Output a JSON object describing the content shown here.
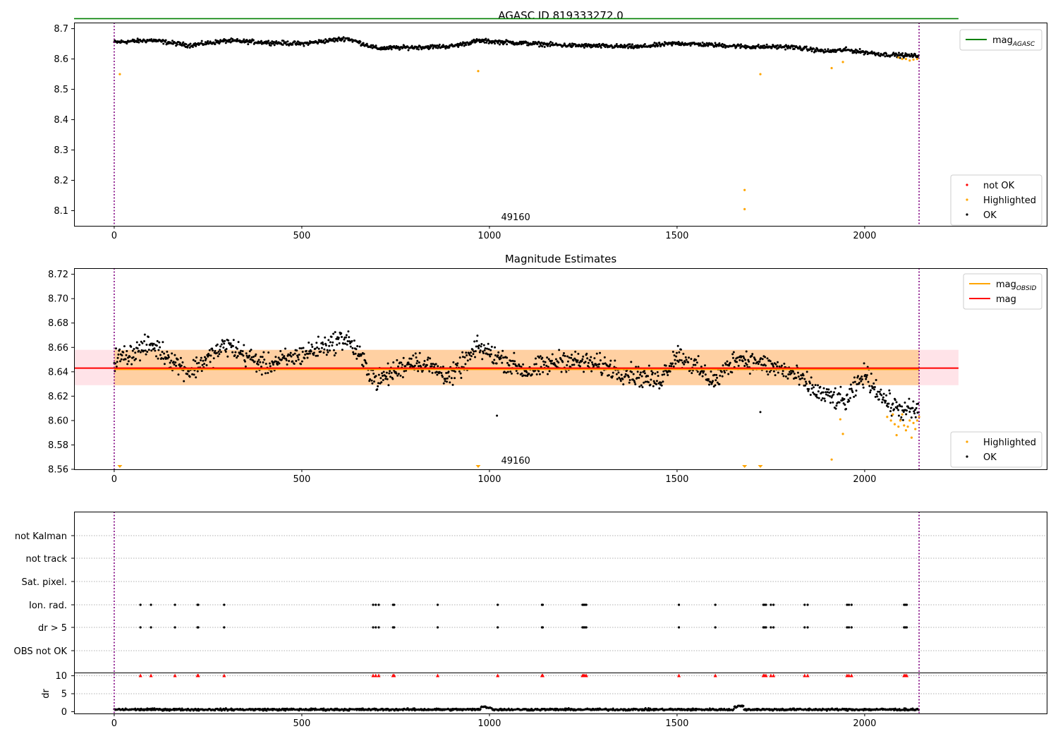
{
  "chart_data": [
    {
      "type": "scatter",
      "title": "AGASC ID 819333272.0",
      "xlim": [
        -107,
        2487
      ],
      "ylim": [
        8.05,
        8.72
      ],
      "xticks": [
        0,
        500,
        1000,
        1500,
        2000
      ],
      "yticks": [
        8.1,
        8.2,
        8.3,
        8.4,
        8.5,
        8.6,
        8.7
      ],
      "annotation": "49160",
      "annotation_x": 1070,
      "obs_boundaries": [
        0,
        2145
      ],
      "reference_line": {
        "label": "mag_AGASC",
        "y": 8.733,
        "x_range": [
          -107,
          2250
        ],
        "color": "#008000"
      },
      "series": [
        {
          "name": "OK",
          "color": "#000000",
          "trend": [
            [
              0,
              8.655
            ],
            [
              100,
              8.662
            ],
            [
              200,
              8.645
            ],
            [
              300,
              8.66
            ],
            [
              500,
              8.65
            ],
            [
              620,
              8.668
            ],
            [
              700,
              8.635
            ],
            [
              900,
              8.642
            ],
            [
              970,
              8.66
            ],
            [
              1200,
              8.645
            ],
            [
              1400,
              8.64
            ],
            [
              1500,
              8.652
            ],
            [
              1700,
              8.64
            ],
            [
              1800,
              8.64
            ],
            [
              1900,
              8.625
            ],
            [
              1950,
              8.63
            ],
            [
              2050,
              8.615
            ],
            [
              2140,
              8.61
            ]
          ],
          "jitter": 0.006
        },
        {
          "name": "Highlighted",
          "color": "#ffa500",
          "points": [
            [
              15,
              8.55
            ],
            [
              970,
              8.56
            ],
            [
              1680,
              8.168
            ],
            [
              1680,
              8.105
            ],
            [
              1722,
              8.55
            ],
            [
              1912,
              8.57
            ],
            [
              1942,
              8.59
            ],
            [
              2090,
              8.605
            ],
            [
              2100,
              8.6
            ],
            [
              2110,
              8.6
            ],
            [
              2120,
              8.595
            ],
            [
              2130,
              8.598
            ],
            [
              2140,
              8.6
            ]
          ]
        },
        {
          "name": "not OK",
          "color": "#ff0000",
          "points": []
        }
      ],
      "legends": [
        {
          "position": "top-right",
          "entries": [
            {
              "label": "mag",
              "sub": "AGASC",
              "kind": "line",
              "color": "#008000"
            }
          ]
        },
        {
          "position": "bottom-right",
          "entries": [
            {
              "label": "not OK",
              "kind": "dot",
              "color": "#ff0000"
            },
            {
              "label": "Highlighted",
              "kind": "dot",
              "color": "#ffa500"
            },
            {
              "label": "OK",
              "kind": "dot",
              "color": "#000000"
            }
          ]
        }
      ]
    },
    {
      "type": "scatter",
      "title": "Magnitude Estimates",
      "xlim": [
        -107,
        2487
      ],
      "ylim": [
        8.56,
        8.725
      ],
      "xticks": [
        0,
        500,
        1000,
        1500,
        2000
      ],
      "yticks": [
        8.56,
        8.58,
        8.6,
        8.62,
        8.64,
        8.66,
        8.68,
        8.7,
        8.72
      ],
      "annotation": "49160",
      "annotation_x": 1070,
      "obs_boundaries": [
        0,
        2145
      ],
      "bands": [
        {
          "color": "#ffc0cb",
          "opacity": 0.45,
          "y": [
            8.629,
            8.658
          ],
          "x_range": [
            -107,
            2250
          ]
        },
        {
          "color": "#ffa500",
          "opacity": 0.3,
          "y": [
            8.629,
            8.658
          ],
          "x_range": [
            0,
            2145
          ]
        }
      ],
      "lines": [
        {
          "label": "mag_OBSID",
          "y": 8.642,
          "x_range": [
            0,
            2145
          ],
          "color": "#ffa500"
        },
        {
          "label": "mag",
          "y": 8.643,
          "x_range": [
            -107,
            2250
          ],
          "color": "#ff0000"
        }
      ],
      "series": [
        {
          "name": "OK",
          "color": "#000000",
          "trend": [
            [
              0,
              8.65
            ],
            [
              100,
              8.662
            ],
            [
              200,
              8.64
            ],
            [
              300,
              8.662
            ],
            [
              400,
              8.645
            ],
            [
              480,
              8.652
            ],
            [
              620,
              8.668
            ],
            [
              700,
              8.632
            ],
            [
              800,
              8.65
            ],
            [
              900,
              8.636
            ],
            [
              970,
              8.66
            ],
            [
              1100,
              8.64
            ],
            [
              1200,
              8.65
            ],
            [
              1300,
              8.645
            ],
            [
              1450,
              8.632
            ],
            [
              1500,
              8.655
            ],
            [
              1600,
              8.632
            ],
            [
              1660,
              8.652
            ],
            [
              1800,
              8.64
            ],
            [
              1880,
              8.622
            ],
            [
              1950,
              8.615
            ],
            [
              2000,
              8.638
            ],
            [
              2060,
              8.615
            ],
            [
              2100,
              8.608
            ],
            [
              2145,
              8.608
            ]
          ],
          "jitter": 0.0075,
          "extra_points": [
            [
              1020,
              8.604
            ],
            [
              1722,
              8.607
            ]
          ]
        },
        {
          "name": "Highlighted",
          "color": "#ffa500",
          "points": [
            [
              1912,
              8.568
            ],
            [
              1942,
              8.589
            ],
            [
              1935,
              8.601
            ],
            [
              2060,
              8.603
            ],
            [
              2070,
              8.6
            ],
            [
              2080,
              8.597
            ],
            [
              2090,
              8.595
            ],
            [
              2100,
              8.605
            ],
            [
              2110,
              8.592
            ],
            [
              2120,
              8.6
            ],
            [
              2130,
              8.598
            ],
            [
              2140,
              8.6
            ],
            [
              2145,
              8.603
            ],
            [
              2085,
              8.588
            ],
            [
              2115,
              8.595
            ],
            [
              2125,
              8.586
            ],
            [
              2075,
              8.605
            ],
            [
              2095,
              8.6
            ],
            [
              2105,
              8.596
            ],
            [
              2135,
              8.593
            ]
          ]
        }
      ],
      "offscale_markers": [
        15,
        970,
        1680,
        1722
      ],
      "legends": [
        {
          "position": "top-right",
          "entries": [
            {
              "label": "mag",
              "sub": "OBSID",
              "kind": "line",
              "color": "#ffa500"
            },
            {
              "label": "mag",
              "sub": "",
              "kind": "line",
              "color": "#ff0000"
            }
          ]
        },
        {
          "position": "bottom-right",
          "entries": [
            {
              "label": "Highlighted",
              "kind": "dot",
              "color": "#ffa500"
            },
            {
              "label": "OK",
              "kind": "dot",
              "color": "#000000"
            }
          ]
        }
      ]
    },
    {
      "type": "scatter",
      "title": "",
      "xlim": [
        -107,
        2487
      ],
      "xticks": [
        0,
        500,
        1000,
        1500,
        2000
      ],
      "obs_boundaries": [
        0,
        2145
      ],
      "flag_rows": [
        "not Kalman",
        "not track",
        "Sat. pixel.",
        "Ion. rad.",
        "dr > 5",
        "OBS not OK"
      ],
      "flag_events": {
        "Ion. rad.": [
          70,
          98,
          162,
          222,
          224,
          293,
          690,
          697,
          705,
          743,
          746,
          862,
          1022,
          1140,
          1142,
          1248,
          1251,
          1254,
          1258,
          1505,
          1602,
          1730,
          1733,
          1737,
          1750,
          1757,
          1840,
          1848,
          1953,
          1958,
          1965,
          2105,
          2108,
          2112
        ],
        "dr > 5": [
          70,
          98,
          162,
          222,
          224,
          293,
          690,
          697,
          705,
          743,
          746,
          862,
          1022,
          1140,
          1142,
          1248,
          1251,
          1254,
          1258,
          1505,
          1602,
          1730,
          1733,
          1737,
          1750,
          1757,
          1840,
          1848,
          1953,
          1958,
          1965,
          2105,
          2108,
          2112
        ]
      },
      "dr_panel": {
        "ylabel": "dr",
        "yticks": [
          0,
          5,
          10
        ],
        "ylim": [
          -0.5,
          10.5
        ],
        "baseline": 0.6,
        "jitter": 0.25,
        "bumps": [
          [
            985,
            1.4
          ],
          [
            1000,
            1.1
          ],
          [
            1660,
            1.3
          ],
          [
            1670,
            1.6
          ]
        ],
        "clipped_at": 10,
        "clipped_x": [
          70,
          98,
          162,
          222,
          224,
          293,
          690,
          697,
          705,
          743,
          746,
          862,
          1022,
          1140,
          1142,
          1248,
          1251,
          1254,
          1258,
          1505,
          1602,
          1730,
          1733,
          1737,
          1750,
          1757,
          1840,
          1848,
          1953,
          1958,
          1965,
          2105,
          2108,
          2112
        ],
        "clipped_color": "#ff0000"
      }
    }
  ]
}
